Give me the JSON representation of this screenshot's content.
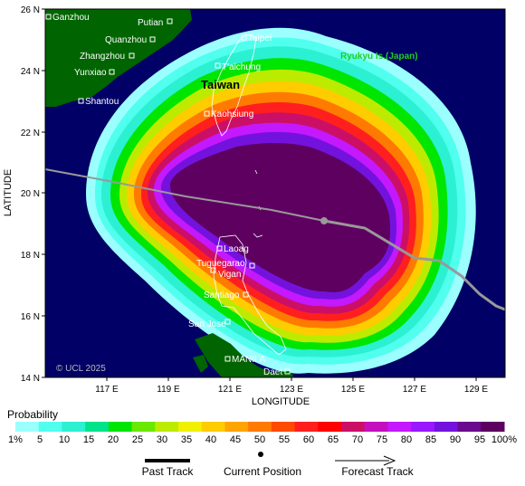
{
  "axes": {
    "ylabel": "LATITUDE",
    "xlabel": "LONGITUDE",
    "lat_ticks": [
      "26 N",
      "24 N",
      "22 N",
      "20 N",
      "18 N",
      "16 N",
      "14 N"
    ],
    "lon_ticks": [
      "117 E",
      "119 E",
      "121 E",
      "123 E",
      "125 E",
      "127 E",
      "129 E"
    ]
  },
  "cities": [
    {
      "name": "Ganzhou"
    },
    {
      "name": "Putian"
    },
    {
      "name": "Quanzhou"
    },
    {
      "name": "Zhangzhou"
    },
    {
      "name": "Yunxiao"
    },
    {
      "name": "Shantou"
    },
    {
      "name": "Taipei"
    },
    {
      "name": "T'aichung"
    },
    {
      "name": "Kaohsiung"
    },
    {
      "name": "Laoag"
    },
    {
      "name": "Tuguegarao"
    },
    {
      "name": "Vigan"
    },
    {
      "name": "Santiago"
    },
    {
      "name": "San Jose"
    },
    {
      "name": "MANILA"
    },
    {
      "name": "Daet"
    }
  ],
  "regions": {
    "taiwan": "Taiwan",
    "ryukyu": "Ryukyu Is.(Japan)"
  },
  "copyright": "© UCL 2025",
  "legend": {
    "title": "Probability",
    "labels": [
      "1%",
      "5",
      "10",
      "15",
      "20",
      "25",
      "30",
      "35",
      "40",
      "45",
      "50",
      "55",
      "60",
      "65",
      "70",
      "75",
      "80",
      "85",
      "90",
      "95",
      "100%"
    ],
    "colors": [
      "#9cffff",
      "#50ffee",
      "#2cf0d2",
      "#00e38a",
      "#00e600",
      "#6ae800",
      "#bdeb00",
      "#f0f000",
      "#ffcc00",
      "#ffa500",
      "#ff7a00",
      "#ff4a00",
      "#ff1f1f",
      "#ff0000",
      "#cc0f66",
      "#c40fbf",
      "#c418ff",
      "#9a18ff",
      "#7412dd",
      "#6a0a8e",
      "#5d0060"
    ],
    "past_track": "Past Track",
    "current_position": "Current Position",
    "forecast_track": "Forecast Track"
  },
  "colors": {
    "ocean": "#000066",
    "land": "#006400",
    "track": "#999999",
    "labels": "#ffffff",
    "ryukyu": "#22cc22"
  }
}
